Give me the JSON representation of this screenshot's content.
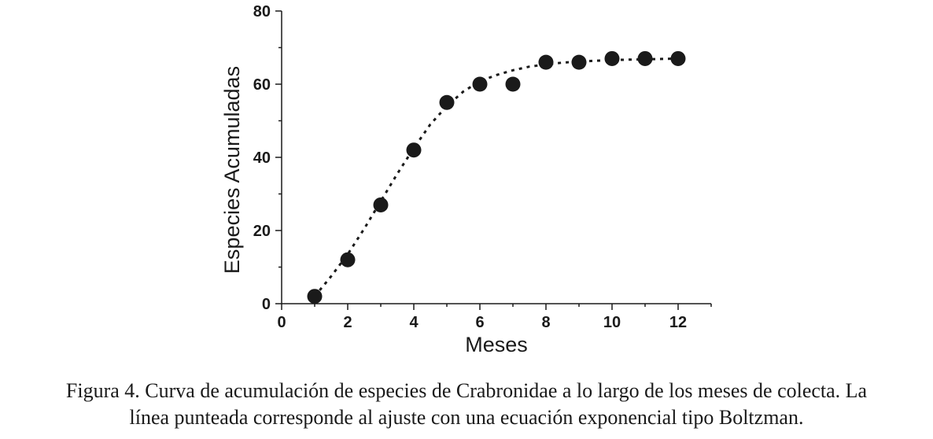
{
  "chart_data": {
    "type": "scatter",
    "xlabel": "Meses",
    "ylabel": "Especies Acumuladas",
    "xlim": [
      0,
      13
    ],
    "ylim": [
      0,
      80
    ],
    "xticks": [
      0,
      2,
      4,
      6,
      8,
      10,
      12
    ],
    "yticks": [
      0,
      20,
      40,
      60,
      80
    ],
    "x": [
      1,
      2,
      3,
      4,
      5,
      6,
      7,
      8,
      9,
      10,
      11,
      12
    ],
    "y": [
      2,
      12,
      27,
      42,
      55,
      60,
      60,
      66,
      66,
      67,
      67,
      67
    ],
    "fit": {
      "style": "dotted",
      "x": [
        1,
        1.5,
        2,
        2.5,
        3,
        3.5,
        4,
        4.5,
        5,
        5.5,
        6,
        6.5,
        7,
        7.5,
        8,
        8.5,
        9,
        9.5,
        10,
        10.5,
        11,
        11.5,
        12
      ],
      "y": [
        2,
        7.5,
        13.5,
        20.5,
        28,
        35.5,
        42.5,
        49,
        54,
        58,
        60.8,
        62.5,
        63.8,
        64.8,
        65.4,
        65.9,
        66.2,
        66.4,
        66.6,
        66.7,
        66.8,
        66.9,
        67
      ]
    },
    "grid": false,
    "marker_color": "#1a1a1a"
  },
  "caption": {
    "line1": "Figura 4. Curva de acumulación de especies de Crabronidae a lo largo de los meses de colecta. La",
    "line2": "línea punteada corresponde al ajuste con una ecuación exponencial tipo Boltzman."
  }
}
